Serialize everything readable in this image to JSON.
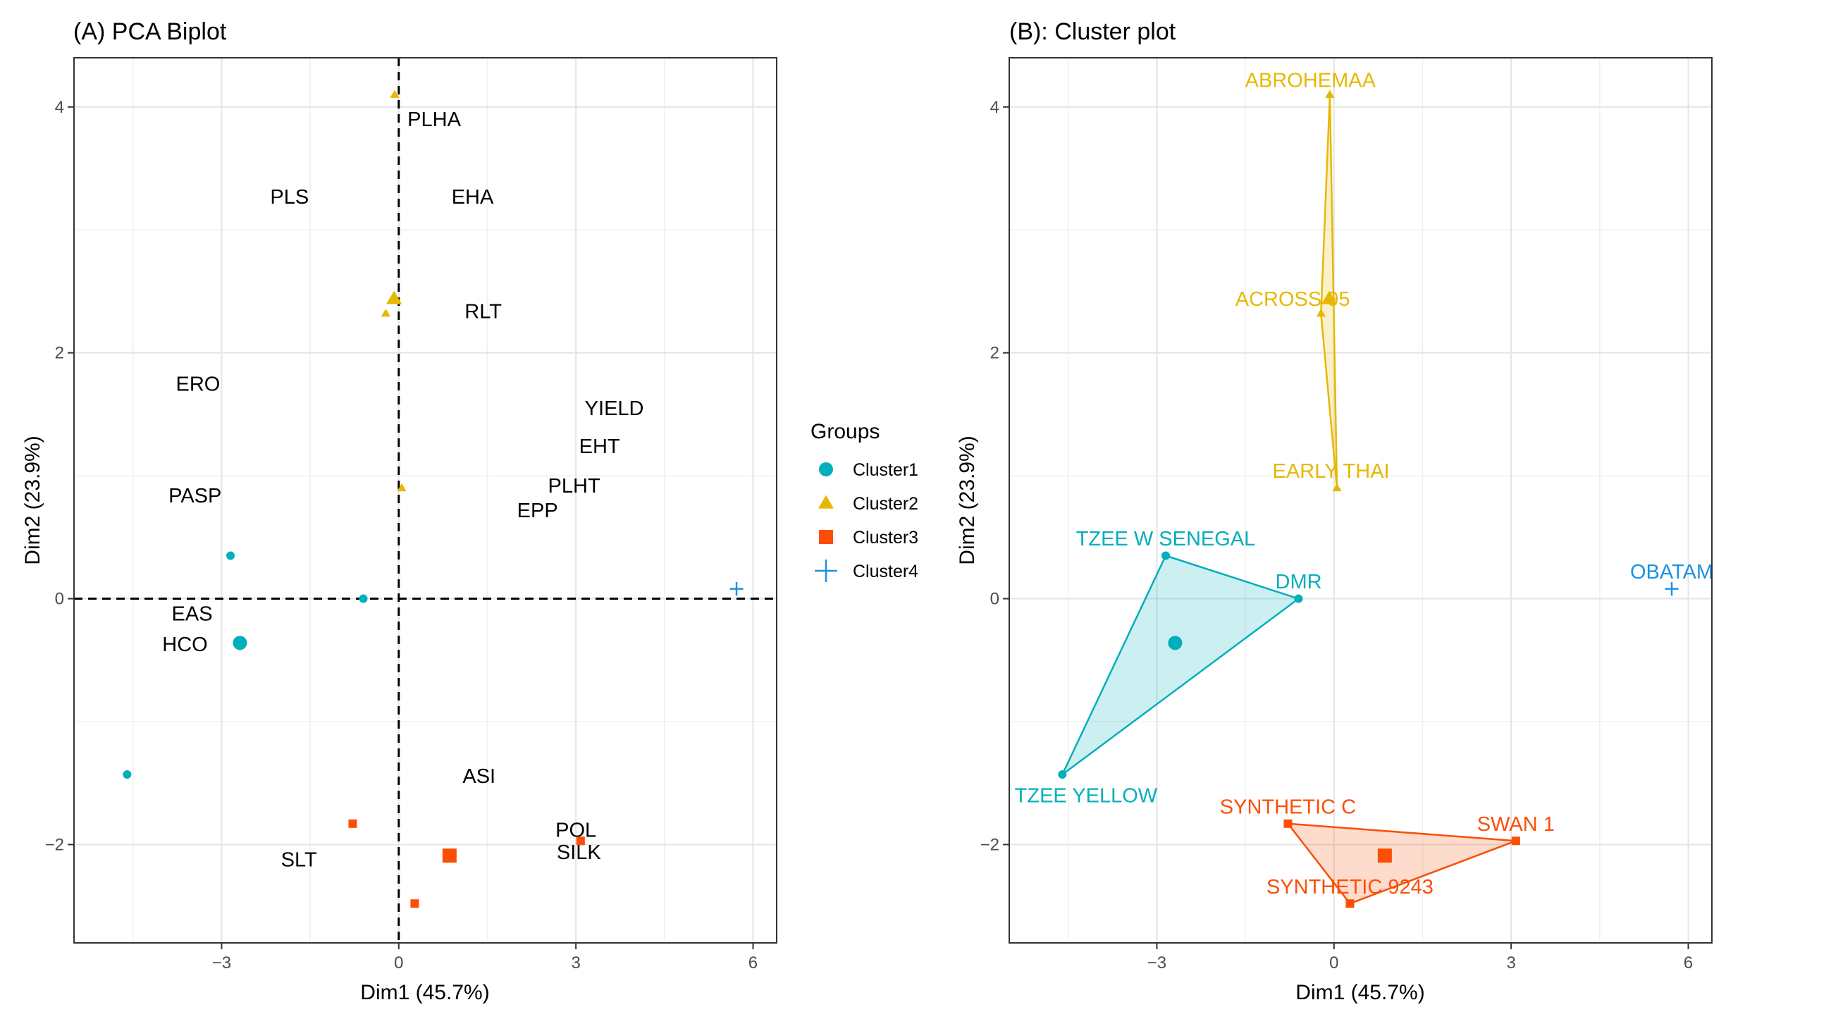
{
  "legend": {
    "title": "Groups",
    "placement": "right",
    "items": [
      {
        "label": "Cluster1",
        "shape": "circle",
        "color": "#00AFBB"
      },
      {
        "label": "Cluster2",
        "shape": "triangle",
        "color": "#E7B800"
      },
      {
        "label": "Cluster3",
        "shape": "square",
        "color": "#FC4E07"
      },
      {
        "label": "Cluster4",
        "shape": "cross",
        "color": "#1E90E0"
      }
    ]
  },
  "chart_data": [
    {
      "type": "scatter",
      "title": "(A) PCA Biplot",
      "xlabel": "Dim1 (45.7%)",
      "ylabel": "Dim2 (23.9%)",
      "xlim": [
        -5.5,
        6.4
      ],
      "ylim": [
        -2.8,
        4.4
      ],
      "xticks": [
        -3,
        0,
        3,
        6
      ],
      "xtick_labels": [
        "-3",
        "0",
        "3",
        "6"
      ],
      "yticks": [
        -2,
        0,
        2,
        4
      ],
      "ytick_labels": [
        "-2",
        "0",
        "2",
        "4"
      ],
      "grid": true,
      "reference_lines": {
        "x": 0,
        "y": 0,
        "style": "dashed"
      },
      "points": [
        {
          "cluster": 1,
          "x": -2.85,
          "y": 0.35
        },
        {
          "cluster": 1,
          "x": -0.6,
          "y": 0.0
        },
        {
          "cluster": 1,
          "x": -4.6,
          "y": -1.43
        },
        {
          "cluster": 2,
          "x": -0.07,
          "y": 4.1
        },
        {
          "cluster": 2,
          "x": -0.22,
          "y": 2.32
        },
        {
          "cluster": 2,
          "x": 0.05,
          "y": 0.9
        },
        {
          "cluster": 3,
          "x": -0.78,
          "y": -1.83
        },
        {
          "cluster": 3,
          "x": 3.08,
          "y": -1.97
        },
        {
          "cluster": 3,
          "x": 0.27,
          "y": -2.48
        },
        {
          "cluster": 4,
          "x": 5.72,
          "y": 0.08
        }
      ],
      "centroids": [
        {
          "cluster": 1,
          "x": -2.69,
          "y": -0.36
        },
        {
          "cluster": 2,
          "x": -0.08,
          "y": 2.44
        },
        {
          "cluster": 3,
          "x": 0.86,
          "y": -2.09
        }
      ],
      "variable_labels": [
        {
          "text": "PLHA",
          "x": 0.6,
          "y": 3.9
        },
        {
          "text": "PLS",
          "x": -1.85,
          "y": 3.27
        },
        {
          "text": "EHA",
          "x": 1.25,
          "y": 3.27
        },
        {
          "text": "RLT",
          "x": 1.43,
          "y": 2.34
        },
        {
          "text": "ERO",
          "x": -3.4,
          "y": 1.75
        },
        {
          "text": "YIELD",
          "x": 3.65,
          "y": 1.55
        },
        {
          "text": "EHT",
          "x": 3.4,
          "y": 1.24
        },
        {
          "text": "PLHT",
          "x": 2.97,
          "y": 0.92
        },
        {
          "text": "EPP",
          "x": 2.35,
          "y": 0.72
        },
        {
          "text": "PASP",
          "x": -3.45,
          "y": 0.84
        },
        {
          "text": "EAS",
          "x": -3.5,
          "y": -0.12
        },
        {
          "text": "HCO",
          "x": -3.62,
          "y": -0.37
        },
        {
          "text": "ASI",
          "x": 1.36,
          "y": -1.44
        },
        {
          "text": "POL",
          "x": 3.0,
          "y": -1.88
        },
        {
          "text": "SILK",
          "x": 3.05,
          "y": -2.06
        },
        {
          "text": "SLT",
          "x": -1.69,
          "y": -2.12
        }
      ]
    },
    {
      "type": "scatter",
      "title": "(B): Cluster plot",
      "xlabel": "Dim1 (45.7%)",
      "ylabel": "Dim2 (23.9%)",
      "xlim": [
        -5.5,
        6.4
      ],
      "ylim": [
        -2.8,
        4.4
      ],
      "xticks": [
        -3,
        0,
        3,
        6
      ],
      "xtick_labels": [
        "-3",
        "0",
        "3",
        "6"
      ],
      "yticks": [
        -2,
        0,
        2,
        4
      ],
      "ytick_labels": [
        "-2",
        "0",
        "2",
        "4"
      ],
      "grid": true,
      "points": [
        {
          "cluster": 1,
          "name": "TZEE W SENEGAL",
          "x": -2.85,
          "y": 0.35,
          "lx": -2.85,
          "ly": 0.49
        },
        {
          "cluster": 1,
          "name": "DMR",
          "x": -0.6,
          "y": 0.0,
          "lx": -0.6,
          "ly": 0.14
        },
        {
          "cluster": 1,
          "name": "TZEE YELLOW",
          "x": -4.6,
          "y": -1.43,
          "lx": -4.2,
          "ly": -1.6
        },
        {
          "cluster": 2,
          "name": "ABROHEMAA",
          "x": -0.07,
          "y": 4.1,
          "lx": -0.4,
          "ly": 4.22
        },
        {
          "cluster": 2,
          "name": "ACROSS 95",
          "x": -0.22,
          "y": 2.32,
          "lx": -0.7,
          "ly": 2.44
        },
        {
          "cluster": 2,
          "name": "EARLY THAI",
          "x": 0.05,
          "y": 0.9,
          "lx": -0.05,
          "ly": 1.04
        },
        {
          "cluster": 3,
          "name": "SYNTHETIC C",
          "x": -0.78,
          "y": -1.83,
          "lx": -0.78,
          "ly": -1.69
        },
        {
          "cluster": 3,
          "name": "SWAN 1",
          "x": 3.08,
          "y": -1.97,
          "lx": 3.08,
          "ly": -1.83
        },
        {
          "cluster": 3,
          "name": "SYNTHETIC 9243",
          "x": 0.27,
          "y": -2.48,
          "lx": 0.27,
          "ly": -2.34
        },
        {
          "cluster": 4,
          "name": "OBATAM",
          "x": 5.72,
          "y": 0.08,
          "lx": 5.72,
          "ly": 0.22
        }
      ],
      "centroids": [
        {
          "cluster": 1,
          "x": -2.69,
          "y": -0.36
        },
        {
          "cluster": 2,
          "x": -0.08,
          "y": 2.44
        },
        {
          "cluster": 3,
          "x": 0.86,
          "y": -2.09
        }
      ],
      "hulls": [
        {
          "cluster": 1,
          "vertices": [
            [
              -2.85,
              0.35
            ],
            [
              -0.6,
              0.0
            ],
            [
              -4.6,
              -1.43
            ]
          ]
        },
        {
          "cluster": 2,
          "vertices": [
            [
              -0.07,
              4.1
            ],
            [
              0.05,
              0.9
            ],
            [
              -0.22,
              2.32
            ]
          ]
        },
        {
          "cluster": 3,
          "vertices": [
            [
              -0.78,
              -1.83
            ],
            [
              3.08,
              -1.97
            ],
            [
              0.27,
              -2.48
            ]
          ]
        }
      ]
    }
  ]
}
